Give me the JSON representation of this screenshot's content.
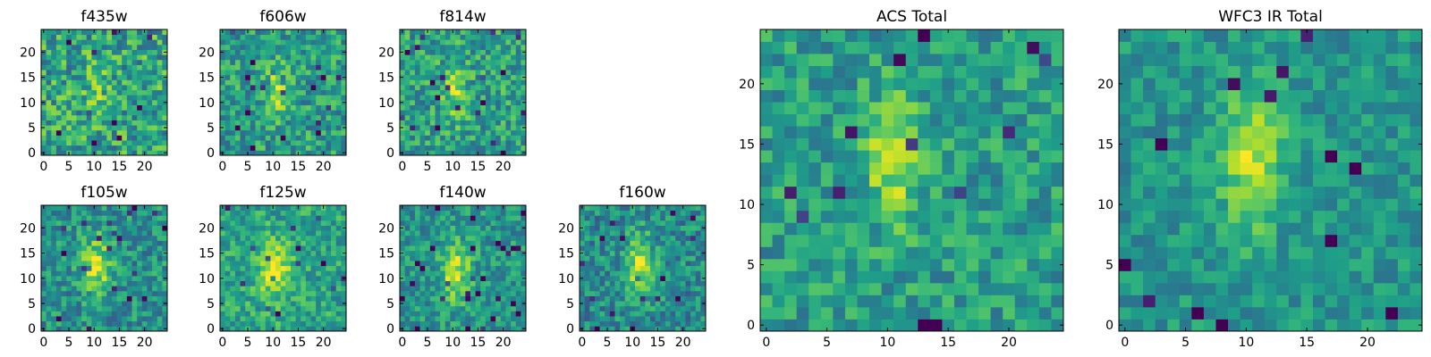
{
  "colormap": {
    "name": "viridis",
    "stops": [
      "#440154",
      "#482878",
      "#3e4989",
      "#31688e",
      "#26828e",
      "#1f9e89",
      "#35b779",
      "#6ece58",
      "#b5de2b",
      "#fde725"
    ]
  },
  "chart_data": [
    {
      "type": "heatmap",
      "title": "f435w",
      "xlim": [
        0,
        25
      ],
      "ylim": [
        0,
        25
      ],
      "grid_size": 25,
      "xticks": [
        0,
        5,
        10,
        15,
        20
      ],
      "yticks": [
        0,
        5,
        10,
        15,
        20
      ],
      "source": {
        "cx": 11,
        "cy": 13,
        "amp": 0.15,
        "sx": 1.6,
        "sy": 4
      },
      "noise": 0.26,
      "base": 0.58,
      "seed": 11
    },
    {
      "type": "heatmap",
      "title": "f606w",
      "xlim": [
        0,
        25
      ],
      "ylim": [
        0,
        25
      ],
      "grid_size": 25,
      "xticks": [
        0,
        5,
        10,
        15,
        20
      ],
      "yticks": [
        0,
        5,
        10,
        15,
        20
      ],
      "source": {
        "cx": 11,
        "cy": 13,
        "amp": 0.3,
        "sx": 1.6,
        "sy": 4
      },
      "noise": 0.22,
      "base": 0.55,
      "seed": 23
    },
    {
      "type": "heatmap",
      "title": "f814w",
      "xlim": [
        0,
        25
      ],
      "ylim": [
        0,
        25
      ],
      "grid_size": 25,
      "xticks": [
        0,
        5,
        10,
        15,
        20
      ],
      "yticks": [
        0,
        5,
        10,
        15,
        20
      ],
      "source": {
        "cx": 11,
        "cy": 13,
        "amp": 0.3,
        "sx": 1.6,
        "sy": 4
      },
      "noise": 0.22,
      "base": 0.56,
      "seed": 37
    },
    {
      "type": "heatmap",
      "title": "f105w",
      "xlim": [
        0,
        25
      ],
      "ylim": [
        0,
        25
      ],
      "grid_size": 25,
      "xticks": [
        0,
        5,
        10,
        15,
        20
      ],
      "yticks": [
        0,
        5,
        10,
        15,
        20
      ],
      "source": {
        "cx": 11,
        "cy": 13,
        "amp": 0.4,
        "sx": 2,
        "sy": 4
      },
      "noise": 0.2,
      "base": 0.5,
      "seed": 41
    },
    {
      "type": "heatmap",
      "title": "f125w",
      "xlim": [
        0,
        25
      ],
      "ylim": [
        0,
        25
      ],
      "grid_size": 25,
      "xticks": [
        0,
        5,
        10,
        15,
        20
      ],
      "yticks": [
        0,
        5,
        10,
        15,
        20
      ],
      "source": {
        "cx": 11,
        "cy": 12,
        "amp": 0.35,
        "sx": 2.5,
        "sy": 4
      },
      "noise": 0.18,
      "base": 0.58,
      "seed": 53
    },
    {
      "type": "heatmap",
      "title": "f140w",
      "xlim": [
        0,
        25
      ],
      "ylim": [
        0,
        25
      ],
      "grid_size": 25,
      "xticks": [
        0,
        5,
        10,
        15,
        20
      ],
      "yticks": [
        0,
        5,
        10,
        15,
        20
      ],
      "source": {
        "cx": 11,
        "cy": 12,
        "amp": 0.4,
        "sx": 2,
        "sy": 4
      },
      "noise": 0.18,
      "base": 0.52,
      "seed": 67
    },
    {
      "type": "heatmap",
      "title": "f160w",
      "xlim": [
        0,
        25
      ],
      "ylim": [
        0,
        25
      ],
      "grid_size": 25,
      "xticks": [
        0,
        5,
        10,
        15,
        20
      ],
      "yticks": [
        0,
        5,
        10,
        15,
        20
      ],
      "source": {
        "cx": 12,
        "cy": 13,
        "amp": 0.45,
        "sx": 2,
        "sy": 4
      },
      "noise": 0.2,
      "base": 0.48,
      "seed": 79
    },
    {
      "type": "heatmap",
      "title": "ACS Total",
      "xlim": [
        0,
        25
      ],
      "ylim": [
        0,
        25
      ],
      "grid_size": 25,
      "xticks": [
        0,
        5,
        10,
        15,
        20
      ],
      "yticks": [
        0,
        5,
        10,
        15,
        20
      ],
      "source": {
        "cx": 11,
        "cy": 14,
        "amp": 0.35,
        "sx": 1.5,
        "sy": 3.5
      },
      "noise": 0.18,
      "base": 0.55,
      "seed": 97
    },
    {
      "type": "heatmap",
      "title": "WFC3 IR Total",
      "xlim": [
        0,
        25
      ],
      "ylim": [
        0,
        25
      ],
      "grid_size": 25,
      "xticks": [
        0,
        5,
        10,
        15,
        20
      ],
      "yticks": [
        0,
        5,
        10,
        15,
        20
      ],
      "source": {
        "cx": 11,
        "cy": 14,
        "amp": 0.4,
        "sx": 1.8,
        "sy": 4
      },
      "noise": 0.14,
      "base": 0.52,
      "seed": 113
    }
  ]
}
